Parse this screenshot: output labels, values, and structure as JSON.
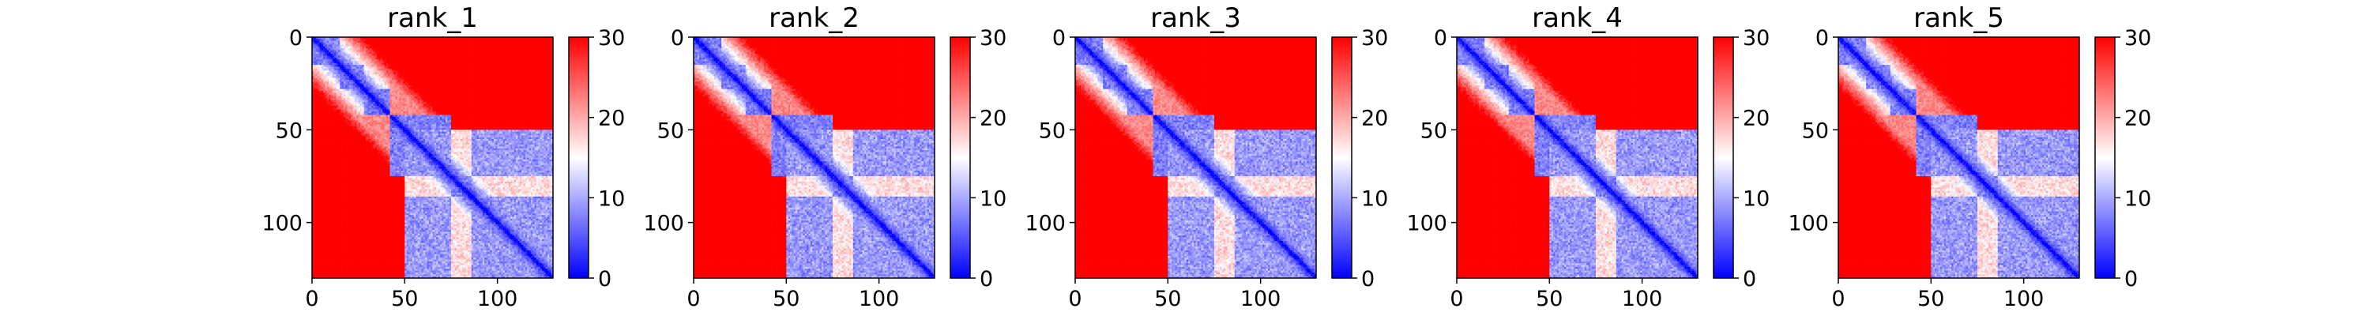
{
  "chart_data": [
    {
      "type": "heatmap",
      "title": "rank_1",
      "x_ticks": [
        0,
        50,
        100
      ],
      "y_ticks": [
        0,
        50,
        100
      ],
      "xlim": [
        0,
        130
      ],
      "ylim": [
        130,
        0
      ],
      "colorbar": {
        "ticks": [
          0,
          10,
          20,
          30
        ],
        "range": [
          0,
          30
        ],
        "colormap": "bwr",
        "low_color": "#0000ff",
        "mid_color": "#ffffff",
        "high_color": "#ff0000"
      },
      "structure": {
        "size": 130,
        "domains": [
          [
            0,
            15
          ],
          [
            15,
            28
          ],
          [
            28,
            42
          ],
          [
            42,
            75
          ],
          [
            75,
            86
          ],
          [
            86,
            108
          ],
          [
            108,
            130
          ]
        ],
        "helix_span": [
          50,
          130
        ]
      }
    },
    {
      "type": "heatmap",
      "title": "rank_2",
      "x_ticks": [
        0,
        50,
        100
      ],
      "y_ticks": [
        0,
        50,
        100
      ],
      "xlim": [
        0,
        130
      ],
      "ylim": [
        130,
        0
      ],
      "colorbar": {
        "ticks": [
          0,
          10,
          20,
          30
        ],
        "range": [
          0,
          30
        ],
        "colormap": "bwr",
        "low_color": "#0000ff",
        "mid_color": "#ffffff",
        "high_color": "#ff0000"
      },
      "structure": {
        "size": 130,
        "domains": [
          [
            0,
            15
          ],
          [
            15,
            28
          ],
          [
            28,
            42
          ],
          [
            42,
            75
          ],
          [
            75,
            86
          ],
          [
            86,
            108
          ],
          [
            108,
            130
          ]
        ],
        "helix_span": [
          50,
          130
        ]
      }
    },
    {
      "type": "heatmap",
      "title": "rank_3",
      "x_ticks": [
        0,
        50,
        100
      ],
      "y_ticks": [
        0,
        50,
        100
      ],
      "xlim": [
        0,
        130
      ],
      "ylim": [
        130,
        0
      ],
      "colorbar": {
        "ticks": [
          0,
          10,
          20,
          30
        ],
        "range": [
          0,
          30
        ],
        "colormap": "bwr",
        "low_color": "#0000ff",
        "mid_color": "#ffffff",
        "high_color": "#ff0000"
      },
      "structure": {
        "size": 130,
        "domains": [
          [
            0,
            15
          ],
          [
            15,
            28
          ],
          [
            28,
            42
          ],
          [
            42,
            75
          ],
          [
            75,
            86
          ],
          [
            86,
            108
          ],
          [
            108,
            130
          ]
        ],
        "helix_span": [
          50,
          130
        ]
      }
    },
    {
      "type": "heatmap",
      "title": "rank_4",
      "x_ticks": [
        0,
        50,
        100
      ],
      "y_ticks": [
        0,
        50,
        100
      ],
      "xlim": [
        0,
        130
      ],
      "ylim": [
        130,
        0
      ],
      "colorbar": {
        "ticks": [
          0,
          10,
          20,
          30
        ],
        "range": [
          0,
          30
        ],
        "colormap": "bwr",
        "low_color": "#0000ff",
        "mid_color": "#ffffff",
        "high_color": "#ff0000"
      },
      "structure": {
        "size": 130,
        "domains": [
          [
            0,
            15
          ],
          [
            15,
            28
          ],
          [
            28,
            42
          ],
          [
            42,
            75
          ],
          [
            75,
            86
          ],
          [
            86,
            108
          ],
          [
            108,
            130
          ]
        ],
        "helix_span": [
          50,
          130
        ]
      }
    },
    {
      "type": "heatmap",
      "title": "rank_5",
      "x_ticks": [
        0,
        50,
        100
      ],
      "y_ticks": [
        0,
        50,
        100
      ],
      "xlim": [
        0,
        130
      ],
      "ylim": [
        130,
        0
      ],
      "colorbar": {
        "ticks": [
          0,
          10,
          20,
          30
        ],
        "range": [
          0,
          30
        ],
        "colormap": "bwr",
        "low_color": "#0000ff",
        "mid_color": "#ffffff",
        "high_color": "#ff0000"
      },
      "structure": {
        "size": 130,
        "domains": [
          [
            0,
            15
          ],
          [
            15,
            28
          ],
          [
            28,
            42
          ],
          [
            42,
            75
          ],
          [
            75,
            86
          ],
          [
            86,
            108
          ],
          [
            108,
            130
          ]
        ],
        "helix_span": [
          50,
          130
        ]
      }
    }
  ]
}
